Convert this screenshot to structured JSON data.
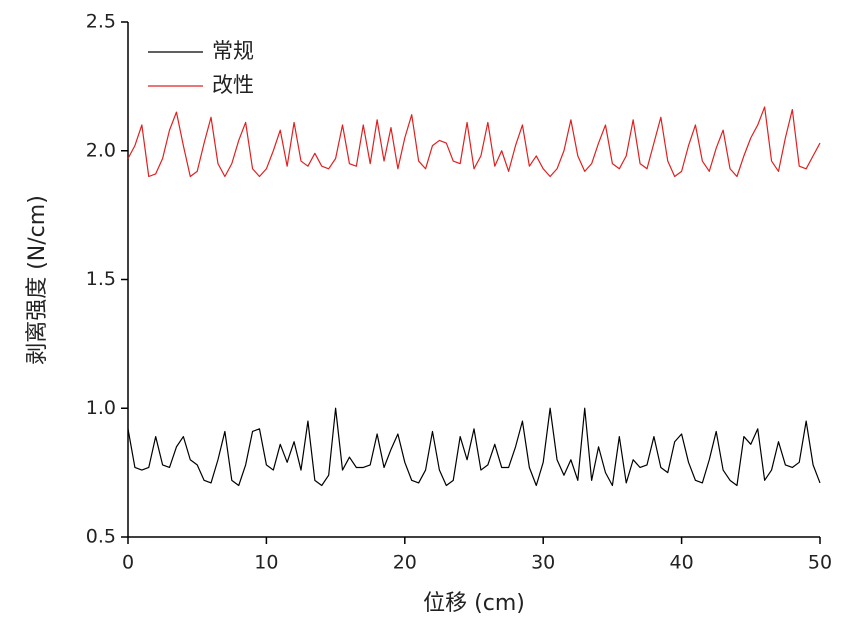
{
  "chart_data": {
    "type": "line",
    "xlabel": "位移 (cm)",
    "ylabel": "剥离强度 (N/cm)",
    "x": [
      0,
      0.5,
      1,
      1.5,
      2,
      2.5,
      3,
      3.5,
      4,
      4.5,
      5,
      5.5,
      6,
      6.5,
      7,
      7.5,
      8,
      8.5,
      9,
      9.5,
      10,
      10.5,
      11,
      11.5,
      12,
      12.5,
      13,
      13.5,
      14,
      14.5,
      15,
      15.5,
      16,
      16.5,
      17,
      17.5,
      18,
      18.5,
      19,
      19.5,
      20,
      20.5,
      21,
      21.5,
      22,
      22.5,
      23,
      23.5,
      24,
      24.5,
      25,
      25.5,
      26,
      26.5,
      27,
      27.5,
      28,
      28.5,
      29,
      29.5,
      30,
      30.5,
      31,
      31.5,
      32,
      32.5,
      33,
      33.5,
      34,
      34.5,
      35,
      35.5,
      36,
      36.5,
      37,
      37.5,
      38,
      38.5,
      39,
      39.5,
      40,
      40.5,
      41,
      41.5,
      42,
      42.5,
      43,
      43.5,
      44,
      44.5,
      45,
      45.5,
      46,
      46.5,
      47,
      47.5,
      48,
      48.5,
      49,
      49.5,
      50
    ],
    "series": [
      {
        "name": "常规",
        "color": "#000000",
        "values": [
          0.92,
          0.77,
          0.76,
          0.77,
          0.89,
          0.78,
          0.77,
          0.85,
          0.89,
          0.8,
          0.78,
          0.72,
          0.71,
          0.8,
          0.91,
          0.72,
          0.7,
          0.78,
          0.91,
          0.92,
          0.78,
          0.76,
          0.86,
          0.79,
          0.87,
          0.76,
          0.95,
          0.72,
          0.7,
          0.74,
          1.0,
          0.76,
          0.81,
          0.77,
          0.77,
          0.78,
          0.9,
          0.77,
          0.84,
          0.9,
          0.79,
          0.72,
          0.71,
          0.76,
          0.91,
          0.76,
          0.7,
          0.72,
          0.89,
          0.8,
          0.92,
          0.76,
          0.78,
          0.86,
          0.77,
          0.77,
          0.85,
          0.95,
          0.77,
          0.7,
          0.79,
          1.0,
          0.8,
          0.74,
          0.8,
          0.72,
          1.0,
          0.72,
          0.85,
          0.75,
          0.7,
          0.89,
          0.71,
          0.8,
          0.77,
          0.78,
          0.89,
          0.77,
          0.75,
          0.87,
          0.9,
          0.79,
          0.72,
          0.71,
          0.8,
          0.91,
          0.76,
          0.72,
          0.7,
          0.89,
          0.86,
          0.92,
          0.72,
          0.76,
          0.87,
          0.78,
          0.77,
          0.79,
          0.95,
          0.78,
          0.71
        ]
      },
      {
        "name": "改性",
        "color": "#e02020",
        "values": [
          1.97,
          2.02,
          2.1,
          1.9,
          1.91,
          1.97,
          2.08,
          2.15,
          2.02,
          1.9,
          1.92,
          2.03,
          2.13,
          1.95,
          1.9,
          1.95,
          2.04,
          2.11,
          1.93,
          1.9,
          1.93,
          2.0,
          2.08,
          1.94,
          2.11,
          1.96,
          1.94,
          1.99,
          1.94,
          1.93,
          1.97,
          2.1,
          1.95,
          1.94,
          2.1,
          1.95,
          2.12,
          1.96,
          2.09,
          1.93,
          2.05,
          2.14,
          1.96,
          1.93,
          2.02,
          2.04,
          2.03,
          1.96,
          1.95,
          2.11,
          1.93,
          1.98,
          2.11,
          1.94,
          2.0,
          1.92,
          2.02,
          2.1,
          1.94,
          1.98,
          1.93,
          1.9,
          1.93,
          2.0,
          2.12,
          1.98,
          1.92,
          1.95,
          2.03,
          2.1,
          1.95,
          1.93,
          1.98,
          2.12,
          1.95,
          1.93,
          2.03,
          2.13,
          1.96,
          1.9,
          1.92,
          2.02,
          2.1,
          1.96,
          1.92,
          2.01,
          2.08,
          1.93,
          1.9,
          1.98,
          2.05,
          2.1,
          2.17,
          1.96,
          1.92,
          2.05,
          2.16,
          1.94,
          1.93,
          1.98,
          2.03
        ]
      }
    ],
    "xlim": [
      0,
      50
    ],
    "xticks": [
      0,
      10,
      20,
      30,
      40,
      50
    ],
    "ylim": [
      0.5,
      2.5
    ],
    "yticks": [
      0.5,
      {
        "value": 1.0,
        "label": "1.0"
      },
      1.5,
      {
        "value": 2.0,
        "label": "2.0"
      },
      2.5
    ],
    "legend": "upper-left"
  }
}
